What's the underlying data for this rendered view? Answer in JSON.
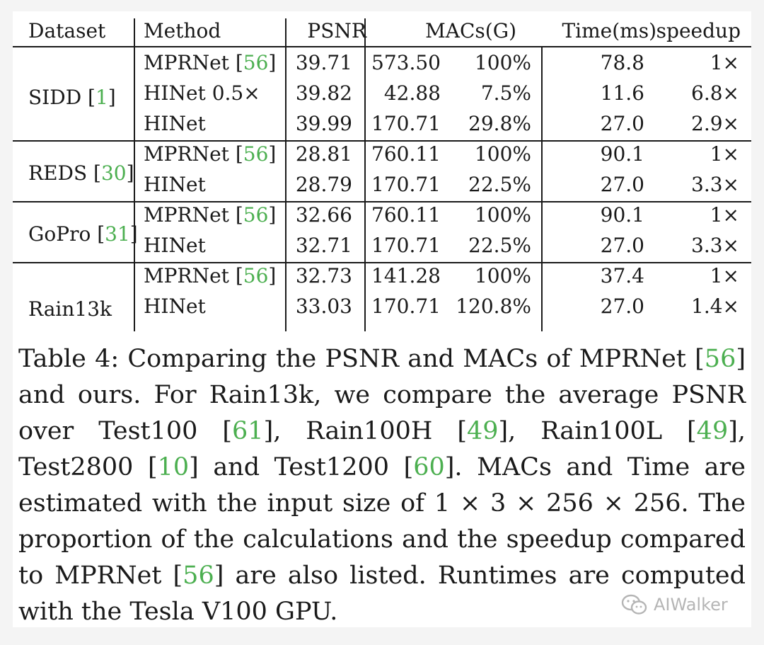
{
  "table": {
    "headers": {
      "dataset": "Dataset",
      "method": "Method",
      "psnr": "PSNR",
      "macs": "MACs(G)",
      "time": "Time(ms)",
      "speedup": "speedup"
    },
    "groups": [
      {
        "dataset": "SIDD",
        "cite": "1",
        "rows": [
          {
            "method": "MPRNet",
            "cite": "56",
            "psnr": "39.71",
            "macs": "573.50",
            "pct": "100%",
            "time": "78.8",
            "speedup": "1×"
          },
          {
            "method": "HINet 0.5×",
            "cite": "",
            "psnr": "39.82",
            "macs": "42.88",
            "pct": "7.5%",
            "time": "11.6",
            "speedup": "6.8×"
          },
          {
            "method": "HINet",
            "cite": "",
            "psnr": "39.99",
            "macs": "170.71",
            "pct": "29.8%",
            "time": "27.0",
            "speedup": "2.9×"
          }
        ]
      },
      {
        "dataset": "REDS",
        "cite": "30",
        "rows": [
          {
            "method": "MPRNet",
            "cite": "56",
            "psnr": "28.81",
            "macs": "760.11",
            "pct": "100%",
            "time": "90.1",
            "speedup": "1×"
          },
          {
            "method": "HINet",
            "cite": "",
            "psnr": "28.79",
            "macs": "170.71",
            "pct": "22.5%",
            "time": "27.0",
            "speedup": "3.3×"
          }
        ]
      },
      {
        "dataset": "GoPro",
        "cite": "31",
        "rows": [
          {
            "method": "MPRNet",
            "cite": "56",
            "psnr": "32.66",
            "macs": "760.11",
            "pct": "100%",
            "time": "90.1",
            "speedup": "1×"
          },
          {
            "method": "HINet",
            "cite": "",
            "psnr": "32.71",
            "macs": "170.71",
            "pct": "22.5%",
            "time": "27.0",
            "speedup": "3.3×"
          }
        ]
      },
      {
        "dataset": "Rain13k",
        "cite": "",
        "rows": [
          {
            "method": "MPRNet",
            "cite": "56",
            "psnr": "32.73",
            "macs": "141.28",
            "pct": "100%",
            "time": "37.4",
            "speedup": "1×"
          },
          {
            "method": "HINet",
            "cite": "",
            "psnr": "33.03",
            "macs": "170.71",
            "pct": "120.8%",
            "time": "27.0",
            "speedup": "1.4×"
          }
        ]
      }
    ]
  },
  "caption": {
    "parts": [
      {
        "t": "Table 4: Comparing the PSNR and MACs of MPRNet ["
      },
      {
        "t": "56",
        "cite": true
      },
      {
        "t": "] and ours. For Rain13k, we compare the average PSNR over Test100 ["
      },
      {
        "t": "61",
        "cite": true
      },
      {
        "t": "], Rain100H ["
      },
      {
        "t": "49",
        "cite": true
      },
      {
        "t": "], Rain100L ["
      },
      {
        "t": "49",
        "cite": true
      },
      {
        "t": "], Test2800 ["
      },
      {
        "t": "10",
        "cite": true
      },
      {
        "t": "] and Test1200 ["
      },
      {
        "t": "60",
        "cite": true
      },
      {
        "t": "]. MACs and Time are estimated with the input size of 1 × 3 × 256 × 256.  The proportion of the calculations and the speedup compared to MPRNet ["
      },
      {
        "t": "56",
        "cite": true
      },
      {
        "t": "] are also listed.  Runtimes are computed with the Tesla V100 GPU."
      }
    ]
  },
  "watermark": {
    "icon": "wechat-icon",
    "text": "AIWalker"
  },
  "colors": {
    "citation": "#4caf50",
    "text": "#1a1a1a",
    "watermark": "#b5b5b5"
  }
}
